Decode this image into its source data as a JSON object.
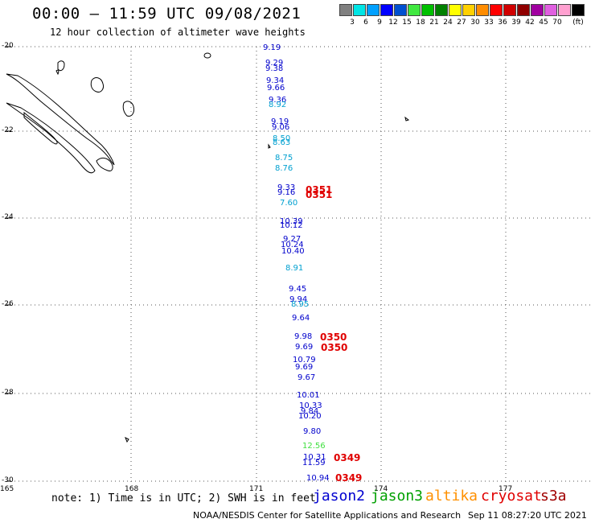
{
  "header": {
    "title": "00:00 – 11:59 UTC 09/08/2021",
    "subtitle": "12 hour collection of altimeter wave heights"
  },
  "legend": {
    "unit": "(ft)",
    "items": [
      {
        "label": "",
        "color": "#808080"
      },
      {
        "label": "3",
        "color": "#00e5e5"
      },
      {
        "label": "6",
        "color": "#00a0ff"
      },
      {
        "label": "9",
        "color": "#0000ff"
      },
      {
        "label": "12",
        "color": "#0050d0"
      },
      {
        "label": "15",
        "color": "#40e840"
      },
      {
        "label": "18",
        "color": "#00c000"
      },
      {
        "label": "21",
        "color": "#008000"
      },
      {
        "label": "24",
        "color": "#ffff00"
      },
      {
        "label": "27",
        "color": "#ffd000"
      },
      {
        "label": "30",
        "color": "#ff8c00"
      },
      {
        "label": "33",
        "color": "#ff0000"
      },
      {
        "label": "36",
        "color": "#d00000"
      },
      {
        "label": "39",
        "color": "#900000"
      },
      {
        "label": "42",
        "color": "#a000a0"
      },
      {
        "label": "45",
        "color": "#e060e0"
      },
      {
        "label": "70",
        "color": "#ffa0d0"
      },
      {
        "label": "",
        "color": "#000000"
      }
    ]
  },
  "axes": {
    "lat_labels": [
      "-20",
      "-22",
      "-24",
      "-26",
      "-28",
      "-30"
    ],
    "lon_labels": [
      "165",
      "168",
      "171",
      "174",
      "177"
    ]
  },
  "observations": [
    {
      "value": "9.19",
      "color": "#0000cc"
    },
    {
      "value": "9.29",
      "color": "#0000cc"
    },
    {
      "value": "9.38",
      "color": "#0000cc"
    },
    {
      "value": "9.34",
      "color": "#0000cc"
    },
    {
      "value": "9.66",
      "color": "#0000cc"
    },
    {
      "value": "9.36",
      "color": "#0000cc"
    },
    {
      "value": "8.92",
      "color": "#00a0d0"
    },
    {
      "value": "9.19",
      "color": "#0000cc"
    },
    {
      "value": "9.06",
      "color": "#0000cc"
    },
    {
      "value": "8.50",
      "color": "#00a0d0"
    },
    {
      "value": "8.63",
      "color": "#00a0d0"
    },
    {
      "value": "8.75",
      "color": "#00a0d0"
    },
    {
      "value": "8.76",
      "color": "#00a0d0"
    },
    {
      "value": "9.33",
      "color": "#0000cc"
    },
    {
      "value": "9.16",
      "color": "#0000cc"
    },
    {
      "value": "7.60",
      "color": "#00a0d0"
    },
    {
      "value": "10.39",
      "color": "#0000cc"
    },
    {
      "value": "10.12",
      "color": "#0000cc"
    },
    {
      "value": "9.27",
      "color": "#0000cc"
    },
    {
      "value": "10.24",
      "color": "#0000cc"
    },
    {
      "value": "10.40",
      "color": "#0000cc"
    },
    {
      "value": "8.91",
      "color": "#00a0d0"
    },
    {
      "value": "9.45",
      "color": "#0000cc"
    },
    {
      "value": "9.94",
      "color": "#0000cc"
    },
    {
      "value": "8.95",
      "color": "#00a0d0"
    },
    {
      "value": "9.64",
      "color": "#0000cc"
    },
    {
      "value": "9.98",
      "color": "#0000cc"
    },
    {
      "value": "9.69",
      "color": "#0000cc"
    },
    {
      "value": "10.79",
      "color": "#0000cc"
    },
    {
      "value": "9.69",
      "color": "#0000cc"
    },
    {
      "value": "9.67",
      "color": "#0000cc"
    },
    {
      "value": "10.01",
      "color": "#0000cc"
    },
    {
      "value": "10.33",
      "color": "#0000cc"
    },
    {
      "value": "9.84",
      "color": "#0000cc"
    },
    {
      "value": "10.20",
      "color": "#0000cc"
    },
    {
      "value": "9.80",
      "color": "#0000cc"
    },
    {
      "value": "12.56",
      "color": "#40e040"
    },
    {
      "value": "10.31",
      "color": "#0000cc"
    },
    {
      "value": "11.59",
      "color": "#0000cc"
    },
    {
      "value": "10.94",
      "color": "#0000cc"
    }
  ],
  "pass_labels": [
    "0351",
    "0351",
    "0350",
    "0350",
    "0349",
    "0349"
  ],
  "footer": {
    "note": "note: 1) Time is in UTC; 2) SWH is in feet",
    "satellites": [
      {
        "name": "jason2",
        "color": "#0000d0"
      },
      {
        "name": "jason3",
        "color": "#00a000"
      },
      {
        "name": "altika",
        "color": "#ff9000"
      },
      {
        "name": "cryosat",
        "color": "#e00000"
      },
      {
        "name": "s3a",
        "color": "#a00000"
      }
    ],
    "credit": "NOAA/NESDIS Center for Satellite Applications and Research",
    "timestamp": "Sep 11 08:27:20 UTC 2021"
  }
}
